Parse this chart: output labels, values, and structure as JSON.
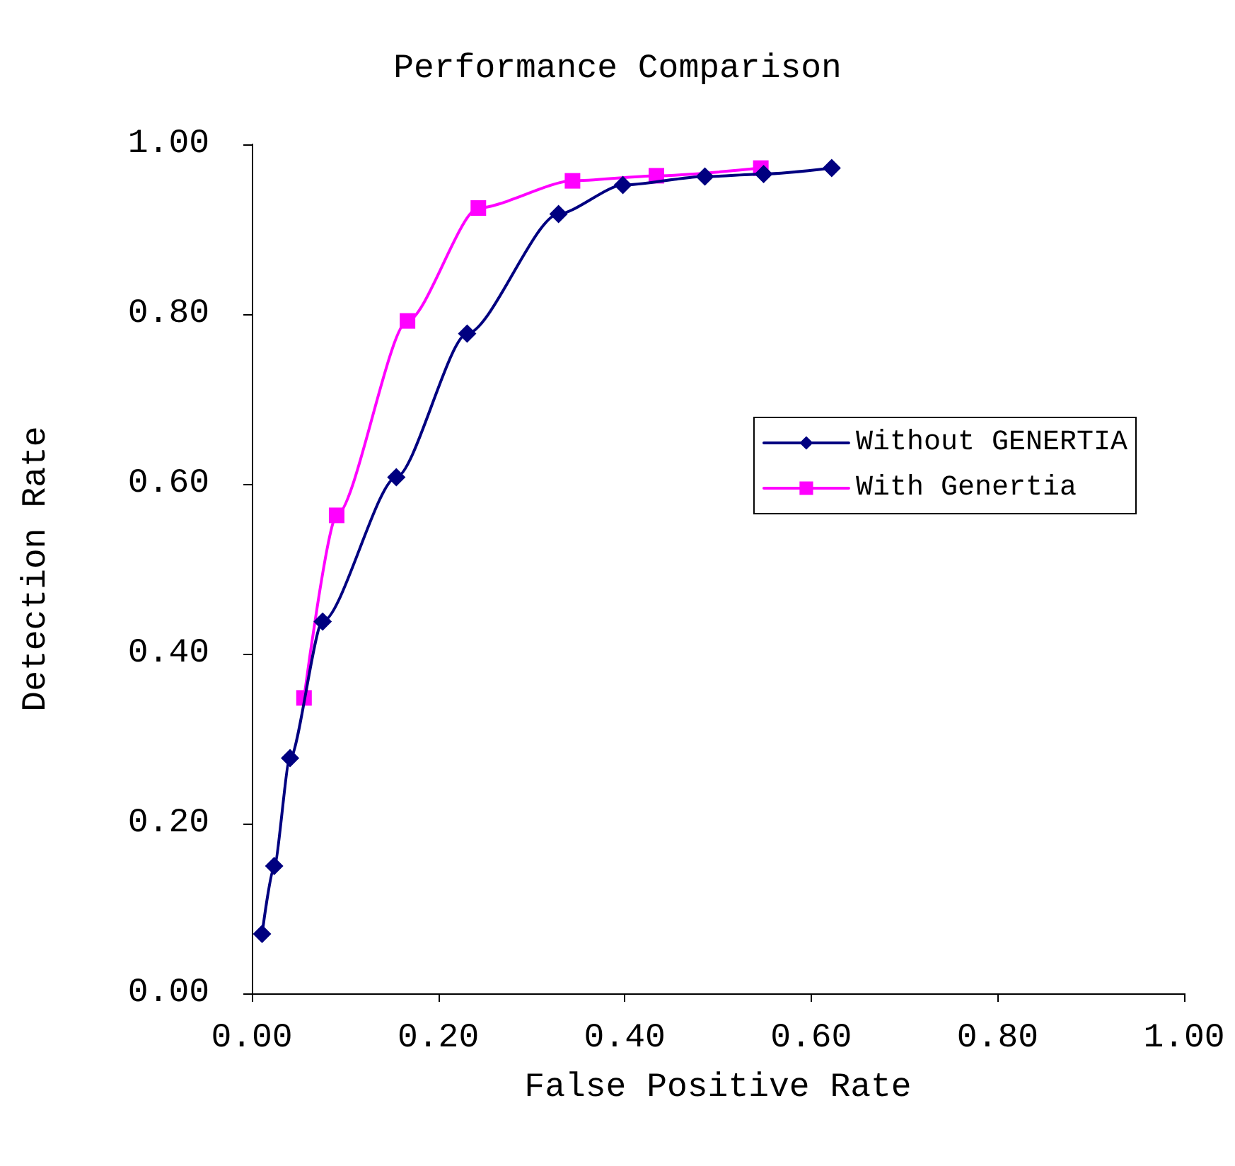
{
  "chart_data": {
    "type": "line",
    "title": "Performance Comparison",
    "xlabel": "False Positive Rate",
    "ylabel": "Detection Rate",
    "series": [
      {
        "name": "Without GENERTIA",
        "color": "#000080",
        "marker": "diamond",
        "x": [
          0.011,
          0.024,
          0.041,
          0.076,
          0.155,
          0.231,
          0.329,
          0.398,
          0.486,
          0.549,
          0.622
        ],
        "values": [
          0.07,
          0.15,
          0.277,
          0.438,
          0.608,
          0.777,
          0.918,
          0.952,
          0.962,
          0.965,
          0.972
        ]
      },
      {
        "name": "With Genertia",
        "color": "#ff00ff",
        "marker": "square",
        "x": [
          0.056,
          0.091,
          0.167,
          0.243,
          0.344,
          0.434,
          0.546
        ],
        "values": [
          0.348,
          0.563,
          0.792,
          0.925,
          0.957,
          0.963,
          0.972
        ]
      }
    ],
    "xlim": [
      0,
      1
    ],
    "ylim": [
      0,
      1
    ],
    "xticks": [
      {
        "value": 0,
        "label": "0.00"
      },
      {
        "value": 0.2,
        "label": "0.20"
      },
      {
        "value": 0.4,
        "label": "0.40"
      },
      {
        "value": 0.6,
        "label": "0.60"
      },
      {
        "value": 0.8,
        "label": "0.80"
      },
      {
        "value": 1,
        "label": "1.00"
      }
    ],
    "yticks": [
      {
        "value": 0,
        "label": "0.00"
      },
      {
        "value": 0.2,
        "label": "0.20"
      },
      {
        "value": 0.4,
        "label": "0.40"
      },
      {
        "value": 0.6,
        "label": "0.60"
      },
      {
        "value": 0.8,
        "label": "0.80"
      },
      {
        "value": 1,
        "label": "1.00"
      }
    ],
    "grid": false,
    "legend": "right",
    "line_style": "solid"
  }
}
